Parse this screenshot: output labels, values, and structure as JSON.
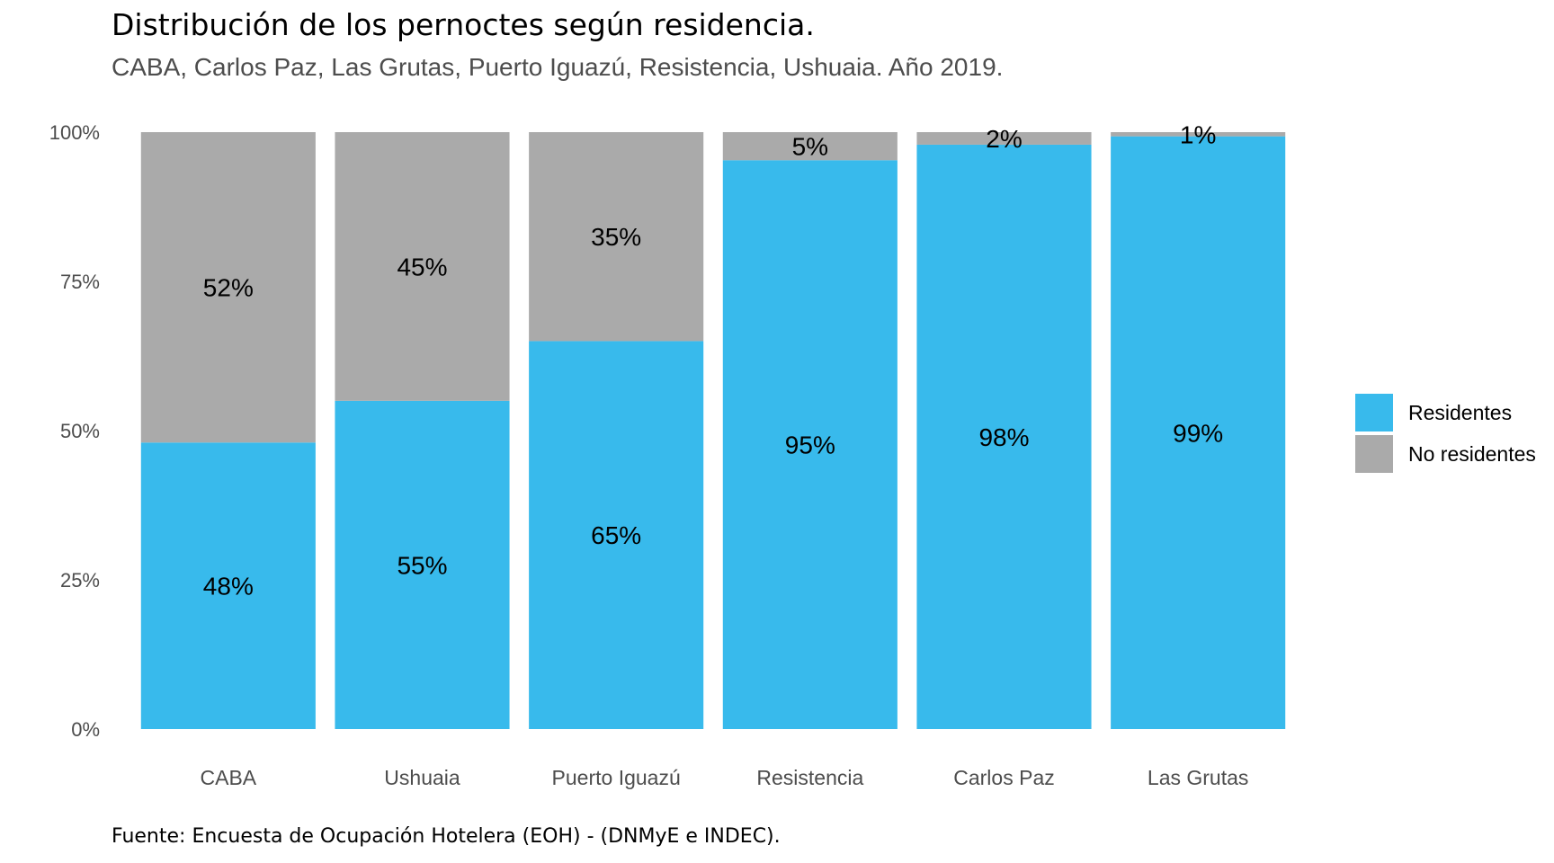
{
  "chart_data": {
    "type": "bar",
    "stacked": true,
    "title": "Distribución de los pernoctes según residencia.",
    "subtitle": "CABA, Carlos Paz, Las Grutas, Puerto Iguazú, Resistencia, Ushuaia. Año 2019.",
    "caption": "Fuente: Encuesta de Ocupación Hotelera (EOH) - (DNMyE e INDEC).",
    "categories": [
      "CABA",
      "Ushuaia",
      "Puerto Iguazú",
      "Resistencia",
      "Carlos Paz",
      "Las Grutas"
    ],
    "series": [
      {
        "name": "Residentes",
        "color": "#38BAEC",
        "values": [
          0.48,
          0.55,
          0.65,
          0.953,
          0.979,
          0.993
        ],
        "labels": [
          "48%",
          "55%",
          "65%",
          "95%",
          "98%",
          "99%"
        ]
      },
      {
        "name": "No residentes",
        "color": "#AAAAAA",
        "values": [
          0.52,
          0.45,
          0.35,
          0.047,
          0.021,
          0.007
        ],
        "labels": [
          "52%",
          "45%",
          "35%",
          "5%",
          "2%",
          "1%"
        ]
      }
    ],
    "yticks": [
      0,
      0.25,
      0.5,
      0.75,
      1.0
    ],
    "ytick_labels": [
      "0%",
      "25%",
      "50%",
      "75%",
      "100%"
    ],
    "ylim": [
      0,
      1
    ],
    "grid": false,
    "legend_position": "right"
  }
}
